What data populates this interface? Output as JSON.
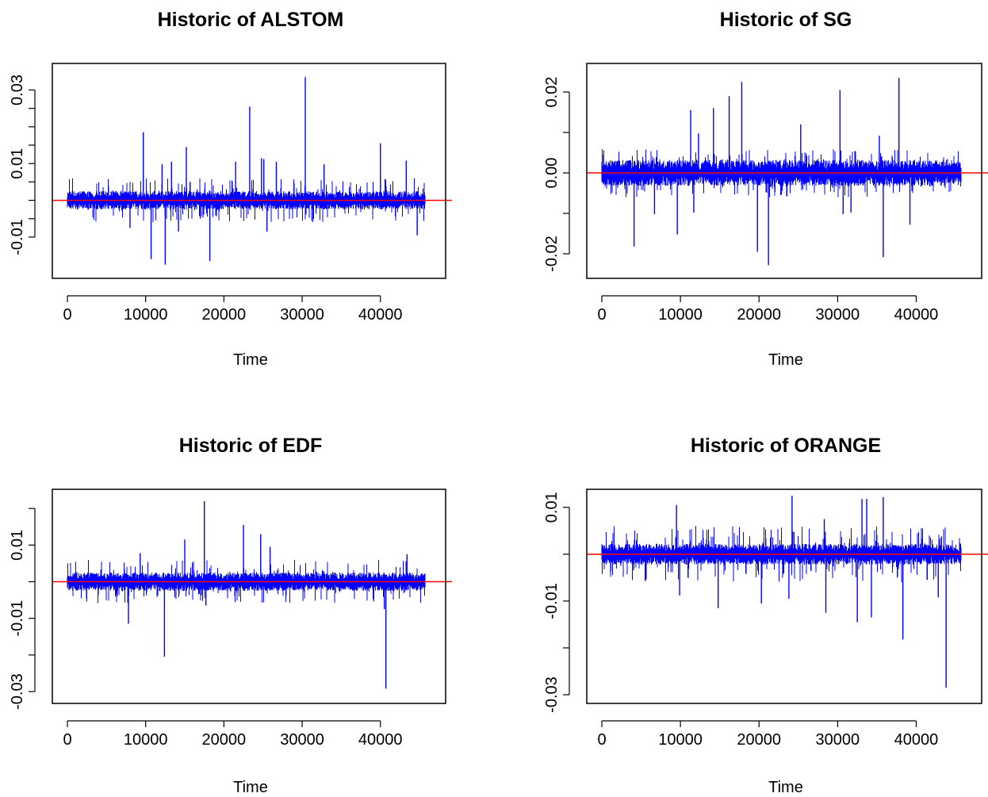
{
  "figure": {
    "layout": "2x2 grid",
    "series_color": "#0000ff",
    "reference_line_color": "#ff0000",
    "background": "#ffffff"
  },
  "chart_data": [
    {
      "type": "line",
      "title": "Historic of  ALSTOM",
      "xlabel": "Time",
      "ylabel": "",
      "xlim": [
        0,
        47500
      ],
      "ylim": [
        -0.0195,
        0.0355
      ],
      "x_ticks": [
        0,
        10000,
        20000,
        30000,
        40000
      ],
      "x_tick_labels": [
        "0",
        "10000",
        "20000",
        "30000",
        "40000"
      ],
      "y_ticks": [
        -0.01,
        -0.005,
        0.0,
        0.005,
        0.01,
        0.015,
        0.02,
        0.025,
        0.03
      ],
      "y_tick_labels": [
        "-0.01",
        "",
        "",
        "",
        "0.01",
        "",
        "",
        "",
        "0.03"
      ],
      "reference_line": 0,
      "n_points": 45700,
      "noise_band": [
        -0.0025,
        0.0025
      ],
      "spikes": [
        {
          "x": 9700,
          "y": 0.0185
        },
        {
          "x": 12100,
          "y": 0.0098
        },
        {
          "x": 13300,
          "y": 0.0105
        },
        {
          "x": 15200,
          "y": 0.0145
        },
        {
          "x": 21500,
          "y": 0.0105
        },
        {
          "x": 23300,
          "y": 0.0255
        },
        {
          "x": 24800,
          "y": 0.0115
        },
        {
          "x": 25100,
          "y": 0.0112
        },
        {
          "x": 26700,
          "y": 0.0105
        },
        {
          "x": 30400,
          "y": 0.0335
        },
        {
          "x": 32800,
          "y": 0.0098
        },
        {
          "x": 40000,
          "y": 0.0155
        },
        {
          "x": 43300,
          "y": 0.0108
        },
        {
          "x": 10700,
          "y": -0.016
        },
        {
          "x": 12500,
          "y": -0.0175
        },
        {
          "x": 18200,
          "y": -0.0165
        },
        {
          "x": 8000,
          "y": -0.0075
        },
        {
          "x": 14200,
          "y": -0.0085
        },
        {
          "x": 25500,
          "y": -0.0085
        },
        {
          "x": 44700,
          "y": -0.0095
        }
      ]
    },
    {
      "type": "line",
      "title": "Historic of  SG",
      "xlabel": "Time",
      "ylabel": "",
      "xlim": [
        0,
        47500
      ],
      "ylim": [
        -0.0245,
        0.0255
      ],
      "x_ticks": [
        0,
        10000,
        20000,
        30000,
        40000
      ],
      "x_tick_labels": [
        "0",
        "10000",
        "20000",
        "30000",
        "40000"
      ],
      "y_ticks": [
        -0.02,
        -0.01,
        0.0,
        0.01,
        0.02
      ],
      "y_tick_labels": [
        "-0.02",
        "",
        "0.00",
        "",
        "0.02"
      ],
      "reference_line": 0,
      "n_points": 45700,
      "noise_band": [
        -0.0032,
        0.0032
      ],
      "spikes": [
        {
          "x": 11300,
          "y": 0.0155
        },
        {
          "x": 12300,
          "y": 0.0098
        },
        {
          "x": 14200,
          "y": 0.016
        },
        {
          "x": 16200,
          "y": 0.019
        },
        {
          "x": 17800,
          "y": 0.0225
        },
        {
          "x": 25300,
          "y": 0.012
        },
        {
          "x": 30300,
          "y": 0.0205
        },
        {
          "x": 35300,
          "y": 0.0092
        },
        {
          "x": 37800,
          "y": 0.0235
        },
        {
          "x": 4100,
          "y": -0.0182
        },
        {
          "x": 6700,
          "y": -0.0102
        },
        {
          "x": 9600,
          "y": -0.0152
        },
        {
          "x": 11700,
          "y": -0.0098
        },
        {
          "x": 19800,
          "y": -0.0195
        },
        {
          "x": 21200,
          "y": -0.0228
        },
        {
          "x": 30700,
          "y": -0.0102
        },
        {
          "x": 31700,
          "y": -0.0098
        },
        {
          "x": 35800,
          "y": -0.0208
        },
        {
          "x": 39200,
          "y": -0.0128
        }
      ]
    },
    {
      "type": "line",
      "title": "Historic of  EDF",
      "xlabel": "Time",
      "ylabel": "",
      "xlim": [
        0,
        47500
      ],
      "ylim": [
        -0.0315,
        0.0235
      ],
      "x_ticks": [
        0,
        10000,
        20000,
        30000,
        40000
      ],
      "x_tick_labels": [
        "0",
        "10000",
        "20000",
        "30000",
        "40000"
      ],
      "y_ticks": [
        -0.03,
        -0.02,
        -0.01,
        0.0,
        0.01,
        0.02
      ],
      "y_tick_labels": [
        "-0.03",
        "",
        "-0.01",
        "",
        "0.01",
        ""
      ],
      "reference_line": 0,
      "n_points": 45700,
      "noise_band": [
        -0.0025,
        0.0025
      ],
      "spikes": [
        {
          "x": 17500,
          "y": 0.022
        },
        {
          "x": 15000,
          "y": 0.0115
        },
        {
          "x": 22500,
          "y": 0.0155
        },
        {
          "x": 24700,
          "y": 0.013
        },
        {
          "x": 25900,
          "y": 0.0095
        },
        {
          "x": 9300,
          "y": 0.0078
        },
        {
          "x": 43400,
          "y": 0.0075
        },
        {
          "x": 12400,
          "y": -0.0205
        },
        {
          "x": 7800,
          "y": -0.0115
        },
        {
          "x": 40700,
          "y": -0.0292
        },
        {
          "x": 40500,
          "y": -0.0075
        },
        {
          "x": 17700,
          "y": -0.0065
        }
      ]
    },
    {
      "type": "line",
      "title": "Historic of  ORANGE",
      "xlabel": "Time",
      "ylabel": "",
      "xlim": [
        0,
        47500
      ],
      "ylim": [
        -0.0305,
        0.0125
      ],
      "x_ticks": [
        0,
        10000,
        20000,
        30000,
        40000
      ],
      "x_tick_labels": [
        "0",
        "10000",
        "20000",
        "30000",
        "40000"
      ],
      "y_ticks": [
        -0.03,
        -0.02,
        -0.01,
        0.0,
        0.01
      ],
      "y_tick_labels": [
        "-0.03",
        "",
        "-0.01",
        "",
        "0.01"
      ],
      "reference_line": 0,
      "n_points": 45700,
      "noise_band": [
        -0.0022,
        0.0022
      ],
      "spikes": [
        {
          "x": 9500,
          "y": 0.0105
        },
        {
          "x": 24200,
          "y": 0.0125
        },
        {
          "x": 33100,
          "y": 0.0118
        },
        {
          "x": 33700,
          "y": 0.0118
        },
        {
          "x": 35800,
          "y": 0.0122
        },
        {
          "x": 28300,
          "y": 0.0075
        },
        {
          "x": 14800,
          "y": -0.0115
        },
        {
          "x": 9900,
          "y": -0.0088
        },
        {
          "x": 20300,
          "y": -0.0105
        },
        {
          "x": 23800,
          "y": -0.0095
        },
        {
          "x": 28500,
          "y": -0.0125
        },
        {
          "x": 32500,
          "y": -0.0145
        },
        {
          "x": 34300,
          "y": -0.0135
        },
        {
          "x": 38300,
          "y": -0.0182
        },
        {
          "x": 43800,
          "y": -0.0285
        },
        {
          "x": 42800,
          "y": -0.0092
        }
      ]
    }
  ]
}
